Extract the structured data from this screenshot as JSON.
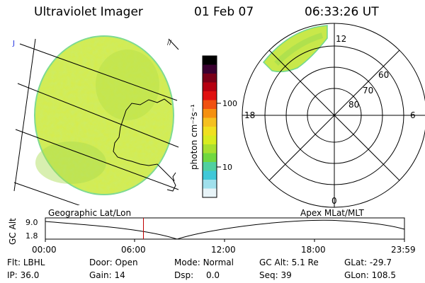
{
  "header": {
    "instrument": "Ultraviolet Imager",
    "date": "01 Feb 07",
    "time": "06:33:26 UT"
  },
  "colorbar": {
    "unit_label": "photon cm⁻²s⁻¹",
    "ticks": [
      "100",
      "10"
    ],
    "colors": [
      "#000000",
      "#3a0030",
      "#7a0018",
      "#b50010",
      "#e01010",
      "#f05010",
      "#f59010",
      "#f5c020",
      "#f0e020",
      "#d8ec20",
      "#a8e030",
      "#70d840",
      "#50d0a0",
      "#40c8d8",
      "#a0e0ec",
      "#e8f4f8"
    ]
  },
  "geo_panel": {
    "image_color": "#d6ec4a",
    "image_edge_color": "#78d890",
    "marker_text": "J"
  },
  "polar_panel": {
    "mlt_labels": {
      "top": "12",
      "left": "18",
      "right": "6",
      "bottom": "0"
    },
    "lat_labels": [
      "60",
      "70",
      "80"
    ]
  },
  "timeline": {
    "axis_label": "GC Alt",
    "left_caption": "Geographic Lat/Lon",
    "right_caption": "Apex MLat/MLT",
    "y_ticks": [
      "9.0",
      "1.8"
    ],
    "x_ticks": [
      "00:00",
      "06:00",
      "12:00",
      "18:00",
      "23:59"
    ],
    "marker_color": "#c00000",
    "current_fraction": 0.2732
  },
  "info": {
    "row1": [
      {
        "label": "Flt:",
        "value": "LBHL"
      },
      {
        "label": "Door:",
        "value": "Open"
      },
      {
        "label": "Mode:",
        "value": "Normal"
      },
      {
        "label": "GC Alt:",
        "value": "5.1 Re"
      },
      {
        "label": "GLat:",
        "value": "-29.7"
      }
    ],
    "row2": [
      {
        "label": "IP:",
        "value": "36.0"
      },
      {
        "label": "Gain:",
        "value": "14"
      },
      {
        "label": "Dsp:",
        "value": "0.0"
      },
      {
        "label": "Seq:",
        "value": "39"
      },
      {
        "label": "GLon:",
        "value": "108.5"
      }
    ]
  }
}
